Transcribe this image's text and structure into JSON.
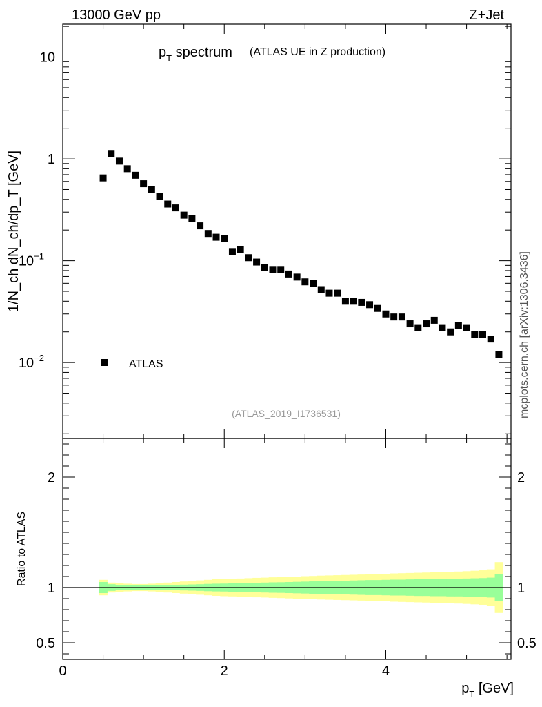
{
  "header": {
    "left": "13000 GeV pp",
    "right": "Z+Jet"
  },
  "side_label": "mcplots.cern.ch [arXiv:1306.3436]",
  "chart_data": [
    {
      "type": "scatter",
      "panel": "main",
      "title_main": "p",
      "title_sub": "T",
      "title_rest": " spectrum",
      "title_note": "(ATLAS UE in Z production)",
      "ylabel": "1/N_ch dN_ch/dp_T [GeV]",
      "yscale": "log",
      "ylim": [
        0.0018,
        21
      ],
      "xlim": [
        0,
        5.55
      ],
      "y_ticks": [
        {
          "value": 10,
          "label": "10",
          "sup": ""
        },
        {
          "value": 1,
          "label": "1",
          "sup": ""
        },
        {
          "value": 0.1,
          "label": "10",
          "sup": "−1"
        },
        {
          "value": 0.01,
          "label": "10",
          "sup": "−2"
        }
      ],
      "legend": {
        "label": "ATLAS",
        "placement": "lower-left"
      },
      "watermark": "(ATLAS_2019_I1736531)",
      "series": [
        {
          "name": "ATLAS",
          "x": [
            0.5,
            0.6,
            0.7,
            0.8,
            0.9,
            1.0,
            1.1,
            1.2,
            1.3,
            1.4,
            1.5,
            1.6,
            1.7,
            1.8,
            1.9,
            2.0,
            2.1,
            2.2,
            2.3,
            2.4,
            2.5,
            2.6,
            2.7,
            2.8,
            2.9,
            3.0,
            3.1,
            3.2,
            3.3,
            3.4,
            3.5,
            3.6,
            3.7,
            3.8,
            3.9,
            4.0,
            4.1,
            4.2,
            4.3,
            4.4,
            4.5,
            4.6,
            4.7,
            4.8,
            4.9,
            5.0,
            5.1,
            5.2,
            5.3,
            5.4
          ],
          "y": [
            0.65,
            1.13,
            0.95,
            0.8,
            0.69,
            0.57,
            0.5,
            0.43,
            0.36,
            0.33,
            0.28,
            0.26,
            0.22,
            0.185,
            0.17,
            0.165,
            0.123,
            0.128,
            0.107,
            0.097,
            0.086,
            0.082,
            0.082,
            0.074,
            0.069,
            0.062,
            0.06,
            0.052,
            0.048,
            0.048,
            0.04,
            0.04,
            0.039,
            0.037,
            0.034,
            0.03,
            0.028,
            0.028,
            0.024,
            0.022,
            0.024,
            0.026,
            0.022,
            0.02,
            0.023,
            0.022,
            0.019,
            0.019,
            0.017,
            0.012
          ]
        }
      ]
    },
    {
      "type": "area",
      "panel": "ratio",
      "ylabel": "Ratio to ATLAS",
      "xlabel": "p_T [GeV]",
      "xlabel_main": "p",
      "xlabel_sub": "T",
      "xlabel_rest": " [GeV]",
      "xlim": [
        0,
        5.55
      ],
      "ylim": [
        0.35,
        2.35
      ],
      "x_ticks": [
        0,
        2,
        4
      ],
      "y_ticks": [
        {
          "value": 0.5,
          "label": "0.5"
        },
        {
          "value": 1,
          "label": "1"
        },
        {
          "value": 2,
          "label": "2"
        }
      ],
      "reference": 1,
      "bands": {
        "x": [
          0.5,
          0.6,
          0.7,
          0.8,
          0.9,
          1.0,
          1.1,
          1.2,
          1.3,
          1.4,
          1.5,
          1.6,
          1.7,
          1.8,
          1.9,
          2.0,
          2.1,
          2.2,
          2.3,
          2.4,
          2.5,
          2.6,
          2.7,
          2.8,
          2.9,
          3.0,
          3.1,
          3.2,
          3.3,
          3.4,
          3.5,
          3.6,
          3.7,
          3.8,
          3.9,
          4.0,
          4.1,
          4.2,
          4.3,
          4.4,
          4.5,
          4.6,
          4.7,
          4.8,
          4.9,
          5.0,
          5.1,
          5.2,
          5.3,
          5.4
        ],
        "bin_width": 0.1,
        "green": [
          0.05,
          0.03,
          0.025,
          0.025,
          0.025,
          0.025,
          0.025,
          0.025,
          0.025,
          0.025,
          0.026,
          0.028,
          0.03,
          0.033,
          0.035,
          0.036,
          0.038,
          0.04,
          0.042,
          0.043,
          0.045,
          0.047,
          0.048,
          0.05,
          0.052,
          0.054,
          0.056,
          0.058,
          0.06,
          0.06,
          0.062,
          0.064,
          0.066,
          0.068,
          0.068,
          0.07,
          0.072,
          0.072,
          0.074,
          0.076,
          0.076,
          0.078,
          0.078,
          0.08,
          0.08,
          0.082,
          0.084,
          0.086,
          0.09,
          0.12
        ],
        "yellow": [
          0.07,
          0.045,
          0.04,
          0.035,
          0.032,
          0.032,
          0.035,
          0.04,
          0.045,
          0.05,
          0.055,
          0.06,
          0.065,
          0.07,
          0.075,
          0.078,
          0.08,
          0.082,
          0.085,
          0.088,
          0.09,
          0.093,
          0.095,
          0.098,
          0.1,
          0.103,
          0.105,
          0.108,
          0.11,
          0.112,
          0.114,
          0.116,
          0.118,
          0.12,
          0.12,
          0.124,
          0.128,
          0.13,
          0.132,
          0.134,
          0.136,
          0.138,
          0.14,
          0.142,
          0.145,
          0.148,
          0.152,
          0.156,
          0.165,
          0.23
        ],
        "green_color": "#99ff99",
        "yellow_color": "#ffff99"
      }
    }
  ]
}
